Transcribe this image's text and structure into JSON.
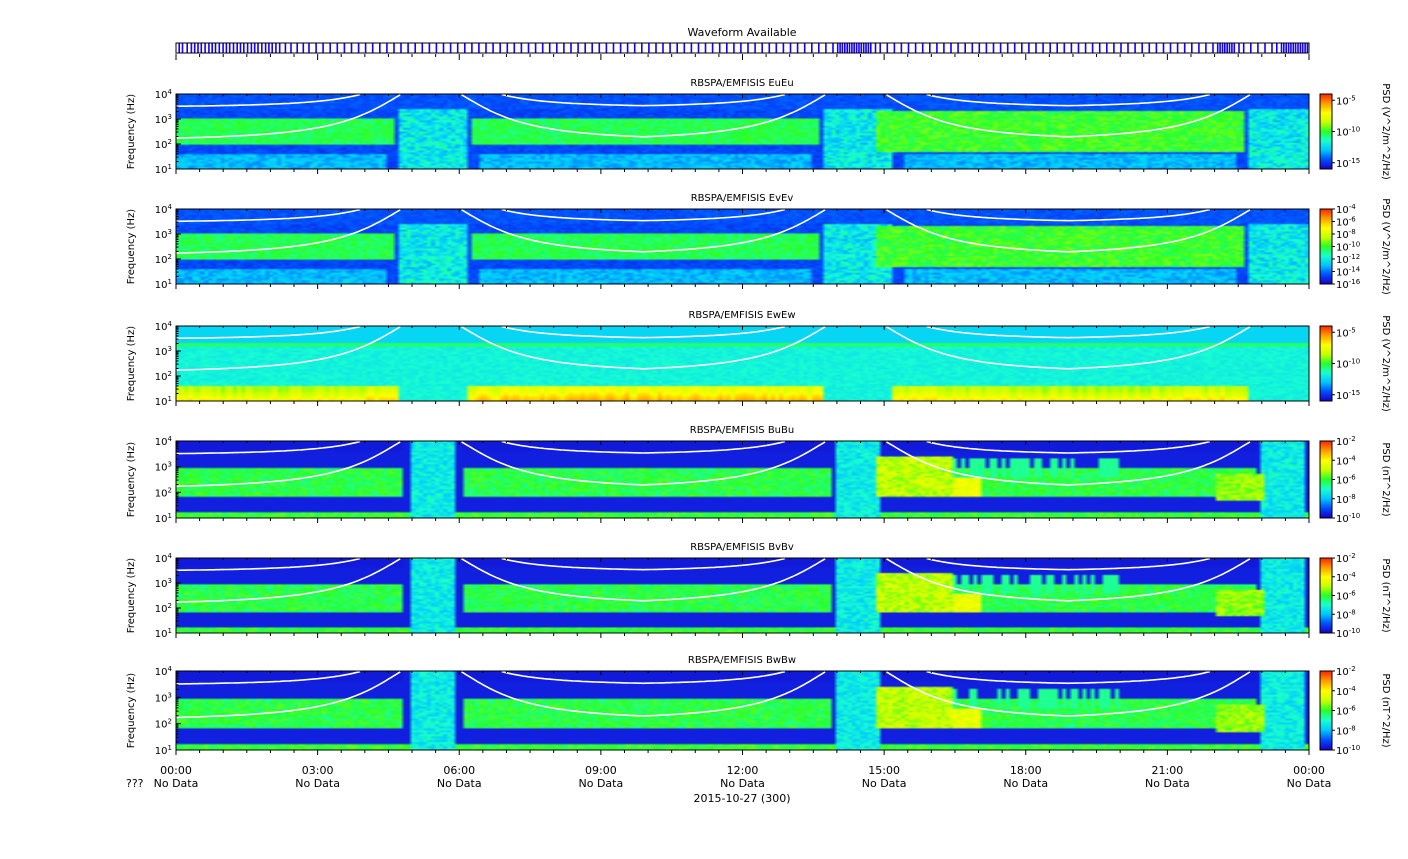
{
  "chart_data": {
    "type": "heatmap",
    "date_label": "2015-10-27 (300)",
    "x_ticks": [
      "00:00",
      "03:00",
      "06:00",
      "09:00",
      "12:00",
      "15:00",
      "18:00",
      "21:00",
      "00:00"
    ],
    "x_tick_sublabels": [
      "No Data",
      "No Data",
      "No Data",
      "No Data",
      "No Data",
      "No Data",
      "No Data",
      "No Data",
      "No Data"
    ],
    "x_row_prefix": "???",
    "x_range_hours": [
      0,
      24
    ],
    "waveform": {
      "title": "Waveform Available",
      "available_hours": [
        0.05,
        0.12,
        0.22,
        0.31,
        0.38,
        0.45,
        0.52,
        0.6,
        0.68,
        0.75,
        0.82,
        0.9,
        0.98,
        1.05,
        1.12,
        1.2,
        1.28,
        1.35,
        1.42,
        1.5,
        1.58,
        1.65,
        1.72,
        1.8,
        1.88,
        1.95,
        2.02,
        2.1,
        2.18,
        2.3,
        2.42,
        2.55,
        2.68,
        2.8,
        2.95,
        3.1,
        3.25,
        3.4,
        3.55,
        3.7,
        3.85,
        4.0,
        4.15,
        4.3,
        4.45,
        4.6,
        4.75,
        4.9,
        5.05,
        5.2,
        5.35,
        5.5,
        5.65,
        5.8,
        5.95,
        6.1,
        6.25,
        6.4,
        6.55,
        6.7,
        6.85,
        7.0,
        7.15,
        7.3,
        7.45,
        7.6,
        7.75,
        7.9,
        8.05,
        8.2,
        8.35,
        8.5,
        8.65,
        8.8,
        8.95,
        9.1,
        9.25,
        9.4,
        9.55,
        9.7,
        9.85,
        10.0,
        10.15,
        10.3,
        10.45,
        10.6,
        10.75,
        10.9,
        11.05,
        11.2,
        11.35,
        11.5,
        11.65,
        11.8,
        11.95,
        12.1,
        12.25,
        12.4,
        12.55,
        12.7,
        12.85,
        13.0,
        13.15,
        13.3,
        13.45,
        13.6,
        13.75,
        13.9,
        14.0,
        14.05,
        14.1,
        14.15,
        14.2,
        14.25,
        14.3,
        14.35,
        14.4,
        14.45,
        14.5,
        14.55,
        14.6,
        14.65,
        14.7,
        14.8,
        14.9,
        15.05,
        15.2,
        15.35,
        15.5,
        15.65,
        15.8,
        15.95,
        16.1,
        16.25,
        16.4,
        16.55,
        16.7,
        16.85,
        17.0,
        17.15,
        17.3,
        17.45,
        17.6,
        17.75,
        17.9,
        18.05,
        18.2,
        18.35,
        18.5,
        18.65,
        18.8,
        18.95,
        19.1,
        19.25,
        19.4,
        19.55,
        19.7,
        19.85,
        20.0,
        20.15,
        20.3,
        20.45,
        20.6,
        20.75,
        20.9,
        21.05,
        21.2,
        21.35,
        21.5,
        21.65,
        21.8,
        21.95,
        22.05,
        22.1,
        22.15,
        22.2,
        22.25,
        22.3,
        22.35,
        22.4,
        22.5,
        22.6,
        22.75,
        22.9,
        23.05,
        23.2,
        23.3,
        23.4,
        23.45,
        23.5,
        23.55,
        23.6,
        23.65,
        23.7,
        23.75,
        23.8,
        23.85,
        23.9,
        23.95
      ]
    },
    "gyro_curves_note": "",
    "panels": [
      {
        "title": "RBSPA/EMFISIS  EuEu",
        "ylabel": "Frequency (Hz)",
        "y_ticks": [
          "1",
          "2",
          "3",
          "4"
        ],
        "y_range_log10": [
          1,
          4
        ],
        "colorbar_label": "PSD (V^2/m^2/Hz)",
        "colorbar_ticks": [
          "-5",
          "-10",
          "-15"
        ],
        "colorbar_range_log10": [
          -16,
          -4
        ],
        "field": "E",
        "variant": 0
      },
      {
        "title": "RBSPA/EMFISIS  EvEv",
        "ylabel": "Frequency (Hz)",
        "y_ticks": [
          "1",
          "2",
          "3",
          "4"
        ],
        "y_range_log10": [
          1,
          4
        ],
        "colorbar_label": "PSD (V^2/m^2/Hz)",
        "colorbar_ticks": [
          "-4",
          "-6",
          "-8",
          "-10",
          "-12",
          "-14",
          "-16"
        ],
        "colorbar_range_log10": [
          -16,
          -4
        ],
        "field": "E",
        "variant": 1
      },
      {
        "title": "RBSPA/EMFISIS  EwEw",
        "ylabel": "Frequency (Hz)",
        "y_ticks": [
          "1",
          "2",
          "3",
          "4"
        ],
        "y_range_log10": [
          1,
          4
        ],
        "colorbar_label": "PSD (V^2/m^2/Hz)",
        "colorbar_ticks": [
          "-5",
          "-10",
          "-15"
        ],
        "colorbar_range_log10": [
          -16,
          -4
        ],
        "field": "Ew",
        "variant": 2
      },
      {
        "title": "RBSPA/EMFISIS  BuBu",
        "ylabel": "Frequency (Hz)",
        "y_ticks": [
          "1",
          "2",
          "3",
          "4"
        ],
        "y_range_log10": [
          1,
          4
        ],
        "colorbar_label": "PSD (nT^2/Hz)",
        "colorbar_ticks": [
          "-2",
          "-4",
          "-6",
          "-8",
          "-10"
        ],
        "colorbar_range_log10": [
          -10,
          -2
        ],
        "field": "B",
        "variant": 3
      },
      {
        "title": "RBSPA/EMFISIS  BvBv",
        "ylabel": "Frequency (Hz)",
        "y_ticks": [
          "1",
          "2",
          "3",
          "4"
        ],
        "y_range_log10": [
          1,
          4
        ],
        "colorbar_label": "PSD (nT^2/Hz)",
        "colorbar_ticks": [
          "-2",
          "-4",
          "-6",
          "-8",
          "-10"
        ],
        "colorbar_range_log10": [
          -10,
          -2
        ],
        "field": "B",
        "variant": 4
      },
      {
        "title": "RBSPA/EMFISIS  BwBw",
        "ylabel": "Frequency (Hz)",
        "y_ticks": [
          "1",
          "2",
          "3",
          "4"
        ],
        "y_range_log10": [
          1,
          4
        ],
        "colorbar_label": "PSD (nT^2/Hz)",
        "colorbar_ticks": [
          "-2",
          "-4",
          "-6",
          "-8",
          "-10"
        ],
        "colorbar_range_log10": [
          -10,
          -2
        ],
        "field": "B",
        "variant": 5
      }
    ],
    "perigee_hours": [
      5.4,
      14.4,
      23.4
    ],
    "colormap": [
      "#1a00c8",
      "#0050ff",
      "#00c8ff",
      "#19ffd0",
      "#28ff28",
      "#c8ff00",
      "#ffff00",
      "#ffa000",
      "#ff2800"
    ]
  }
}
